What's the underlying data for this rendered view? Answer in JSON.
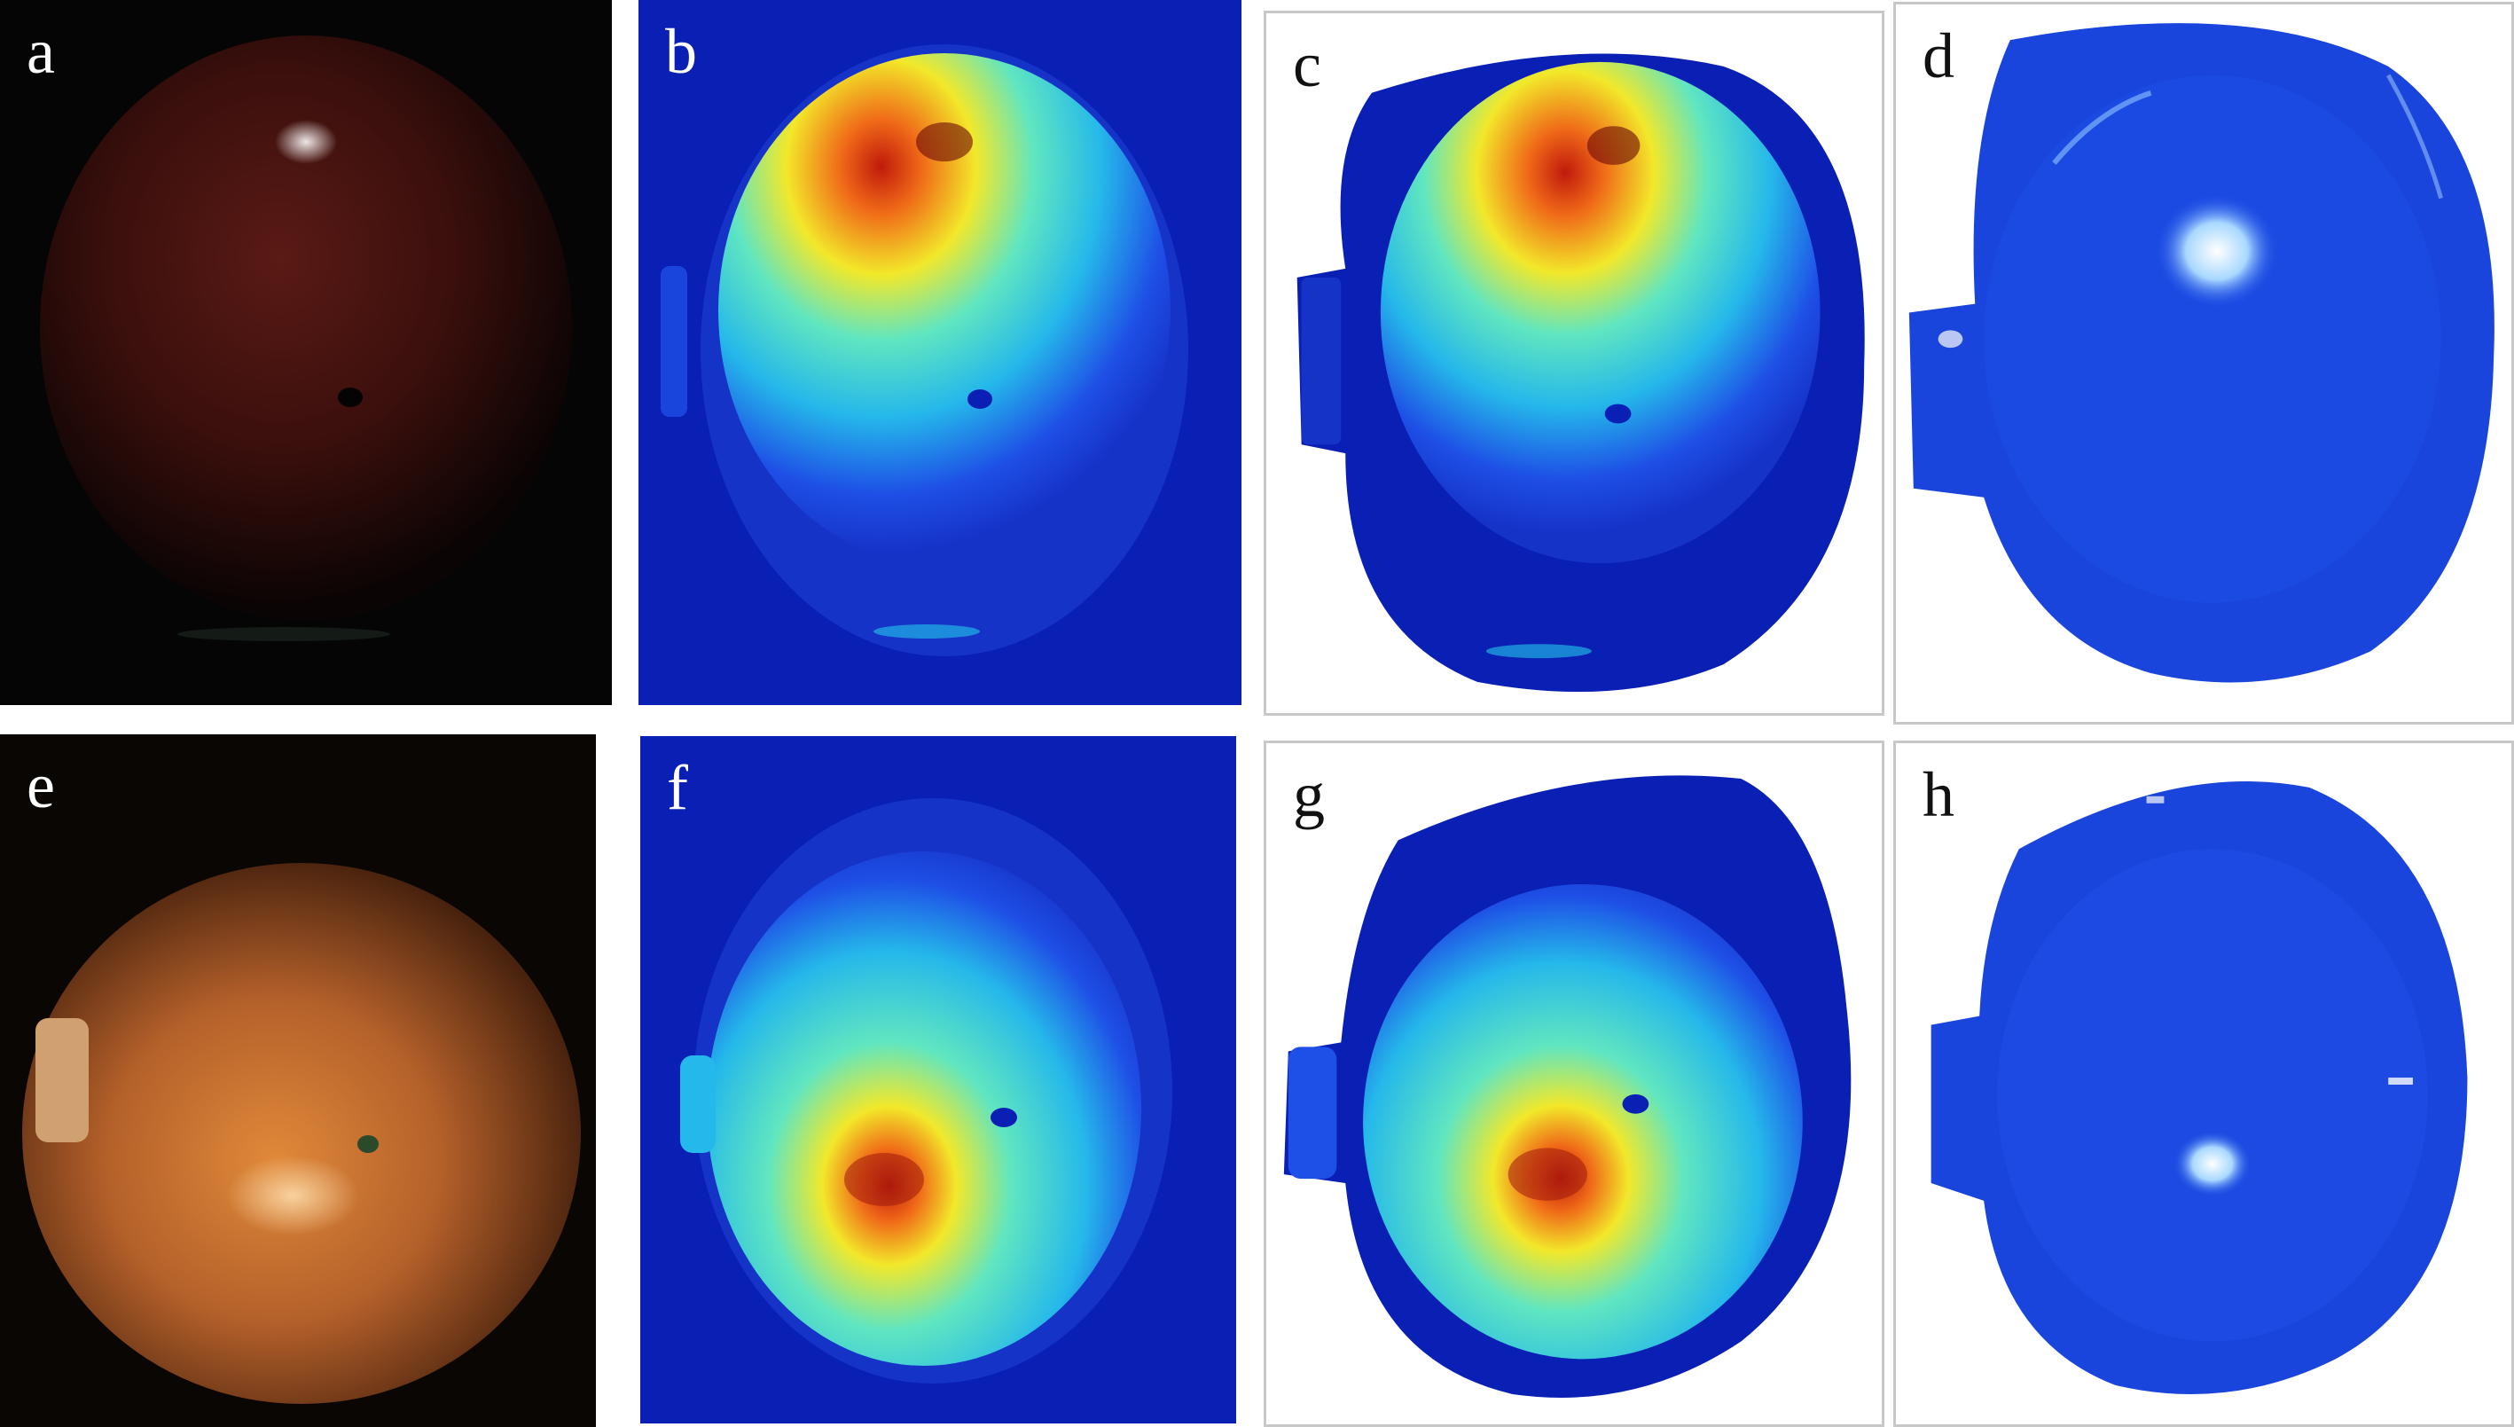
{
  "figure": {
    "panels": [
      {
        "id": "a",
        "label": "a",
        "kind": "color-photo",
        "fruit_tone": "dark red"
      },
      {
        "id": "b",
        "label": "b",
        "kind": "pseudocolor-map",
        "hotspot": "upper"
      },
      {
        "id": "c",
        "label": "c",
        "kind": "pseudocolor-map-segmented",
        "hotspot": "upper"
      },
      {
        "id": "d",
        "label": "d",
        "kind": "segmented-intensity-map",
        "bright_spot": "upper-center"
      },
      {
        "id": "e",
        "label": "e",
        "kind": "color-photo",
        "fruit_tone": "orange"
      },
      {
        "id": "f",
        "label": "f",
        "kind": "pseudocolor-map",
        "hotspot": "lower"
      },
      {
        "id": "g",
        "label": "g",
        "kind": "pseudocolor-map-segmented",
        "hotspot": "lower"
      },
      {
        "id": "h",
        "label": "h",
        "kind": "segmented-intensity-map",
        "bright_spot": "center"
      }
    ]
  },
  "palette": {
    "jet_background": "#0a1fb4",
    "jet_low": "#1e4fe6",
    "jet_mid": "#25c8ea",
    "jet_high": "#f2e82a",
    "jet_peak": "#d8240e",
    "photo_dark_bg": "#050505",
    "photo_red": "#4a1410",
    "photo_orange": "#c46a28",
    "frame_border": "#c8c8c8"
  }
}
